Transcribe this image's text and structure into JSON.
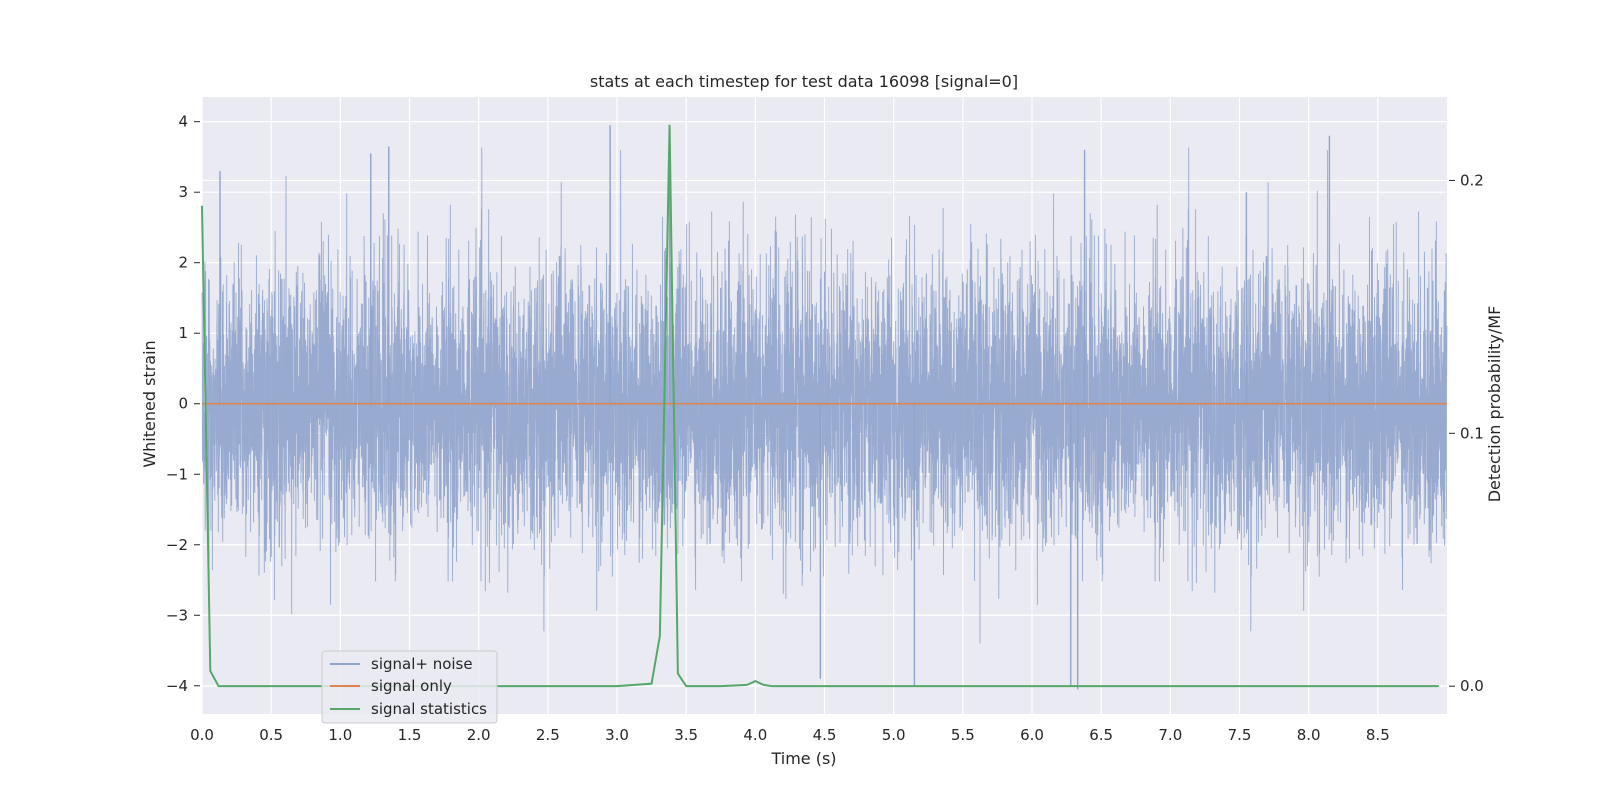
{
  "chart_data": {
    "type": "line",
    "title": "stats at each timestep for test data 16098 [signal=0]",
    "xlabel": "Time (s)",
    "ylabel": "Whitened strain",
    "y2label": "Detection probability/MF",
    "xlim": [
      0.0,
      9.0
    ],
    "ylim": [
      -4.4,
      4.35
    ],
    "y2lim": [
      -0.011,
      0.233
    ],
    "x_ticks": [
      "0.0",
      "0.5",
      "1.0",
      "1.5",
      "2.0",
      "2.5",
      "3.0",
      "3.5",
      "4.0",
      "4.5",
      "5.0",
      "5.5",
      "6.0",
      "6.5",
      "7.0",
      "7.5",
      "8.0",
      "8.5"
    ],
    "y_ticks": [
      "4",
      "3",
      "2",
      "1",
      "0",
      "−1",
      "−2",
      "−3",
      "−4"
    ],
    "y2_ticks": [
      "0.2",
      "0.1",
      "0.0"
    ],
    "grid": true,
    "legend_position": "lower-left",
    "colors": {
      "background": "#eaeaf2",
      "grid": "#ffffff",
      "signal_noise": "#8fa3cb",
      "signal_only": "#dd8452",
      "signal_statistics": "#55a868"
    },
    "series": [
      {
        "name": "signal+ noise",
        "axis": "left",
        "note_shape": "dense noise approx. between -3.3 and +3.9",
        "sample_rate_hz": 2048,
        "duration_s": 9.0,
        "amplitude_std": 0.95,
        "peaks": [
          [
            0.13,
            3.3
          ],
          [
            1.22,
            3.55
          ],
          [
            1.35,
            3.65
          ],
          [
            2.95,
            3.95
          ],
          [
            3.38,
            3.95
          ],
          [
            6.38,
            3.6
          ],
          [
            7.55,
            3.0
          ],
          [
            8.15,
            3.8
          ],
          [
            4.47,
            -3.9
          ],
          [
            6.28,
            -4.0
          ],
          [
            6.33,
            -4.05
          ],
          [
            5.15,
            -4.0
          ]
        ]
      },
      {
        "name": "signal only",
        "axis": "left",
        "x": [
          0.0,
          9.0
        ],
        "y": [
          0.0,
          0.0
        ]
      },
      {
        "name": "signal statistics",
        "axis": "right",
        "x": [
          0.0,
          0.06,
          0.12,
          0.5,
          1.0,
          1.5,
          2.0,
          2.5,
          3.0,
          3.25,
          3.31,
          3.38,
          3.44,
          3.5,
          3.75,
          3.94,
          4.0,
          4.06,
          4.12,
          4.5,
          5.0,
          6.0,
          7.0,
          8.0,
          8.94
        ],
        "y": [
          0.19,
          0.006,
          0.0,
          0.0,
          0.0,
          0.0,
          0.0,
          0.0,
          0.0,
          0.001,
          0.02,
          0.222,
          0.005,
          0.0,
          0.0,
          0.0005,
          0.002,
          0.0005,
          0.0,
          0.0,
          0.0,
          0.0,
          0.0,
          0.0,
          0.0
        ]
      }
    ]
  }
}
